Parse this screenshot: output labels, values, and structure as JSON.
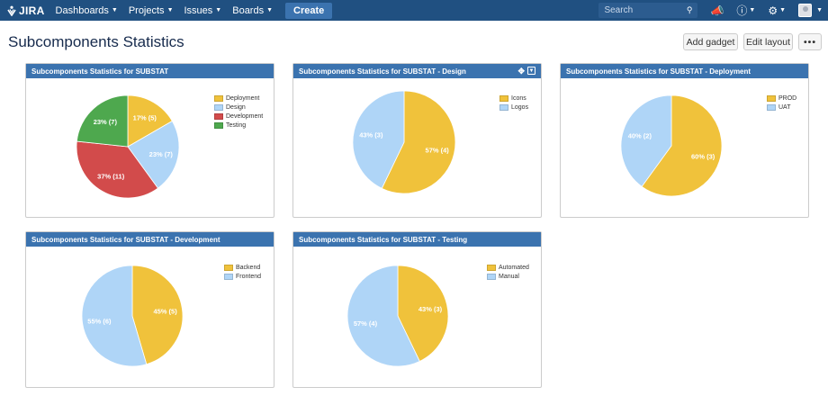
{
  "topnav": {
    "logo": "JIRA",
    "items": [
      {
        "label": "Dashboards"
      },
      {
        "label": "Projects"
      },
      {
        "label": "Issues"
      },
      {
        "label": "Boards"
      }
    ],
    "create_label": "Create",
    "search_placeholder": "Search"
  },
  "page": {
    "title": "Subcomponents Statistics",
    "add_gadget_label": "Add gadget",
    "edit_layout_label": "Edit layout",
    "more_label": "•••"
  },
  "colors": {
    "nav_bg": "#205081",
    "gadget_header": "#3b73af",
    "yellow": "#f0c23b",
    "light_blue": "#afd5f7",
    "red": "#d24b4b",
    "green": "#4ea84e"
  },
  "gadgets": [
    {
      "title": "Subcomponents Statistics for SUBSTAT",
      "chart_data": {
        "type": "pie",
        "start_angle_deg": 0,
        "slices": [
          {
            "name": "Deployment",
            "label": "17% (5)",
            "value": 5,
            "color": "#f0c23b"
          },
          {
            "name": "Design",
            "label": "23% (7)",
            "value": 7,
            "color": "#afd5f7"
          },
          {
            "name": "Development",
            "label": "37% (11)",
            "value": 11,
            "color": "#d24b4b"
          },
          {
            "name": "Testing",
            "label": "23% (7)",
            "value": 7,
            "color": "#4ea84e"
          }
        ]
      }
    },
    {
      "title": "Subcomponents Statistics for SUBSTAT - Design",
      "chart_data": {
        "type": "pie",
        "start_angle_deg": 0,
        "slices": [
          {
            "name": "Icons",
            "label": "57% (4)",
            "value": 4,
            "color": "#f0c23b"
          },
          {
            "name": "Logos",
            "label": "43% (3)",
            "value": 3,
            "color": "#afd5f7"
          }
        ]
      }
    },
    {
      "title": "Subcomponents Statistics for SUBSTAT - Deployment",
      "chart_data": {
        "type": "pie",
        "start_angle_deg": 0,
        "slices": [
          {
            "name": "PROD",
            "label": "60% (3)",
            "value": 3,
            "color": "#f0c23b"
          },
          {
            "name": "UAT",
            "label": "40% (2)",
            "value": 2,
            "color": "#afd5f7"
          }
        ]
      }
    },
    {
      "title": "Subcomponents Statistics for SUBSTAT - Development",
      "chart_data": {
        "type": "pie",
        "start_angle_deg": 0,
        "slices": [
          {
            "name": "Backend",
            "label": "45% (5)",
            "value": 5,
            "color": "#f0c23b"
          },
          {
            "name": "Frontend",
            "label": "55% (6)",
            "value": 6,
            "color": "#afd5f7"
          }
        ]
      }
    },
    {
      "title": "Subcomponents Statistics for SUBSTAT - Testing",
      "chart_data": {
        "type": "pie",
        "start_angle_deg": 0,
        "slices": [
          {
            "name": "Automated",
            "label": "43% (3)",
            "value": 3,
            "color": "#f0c23b"
          },
          {
            "name": "Manual",
            "label": "57% (4)",
            "value": 4,
            "color": "#afd5f7"
          }
        ]
      }
    }
  ]
}
